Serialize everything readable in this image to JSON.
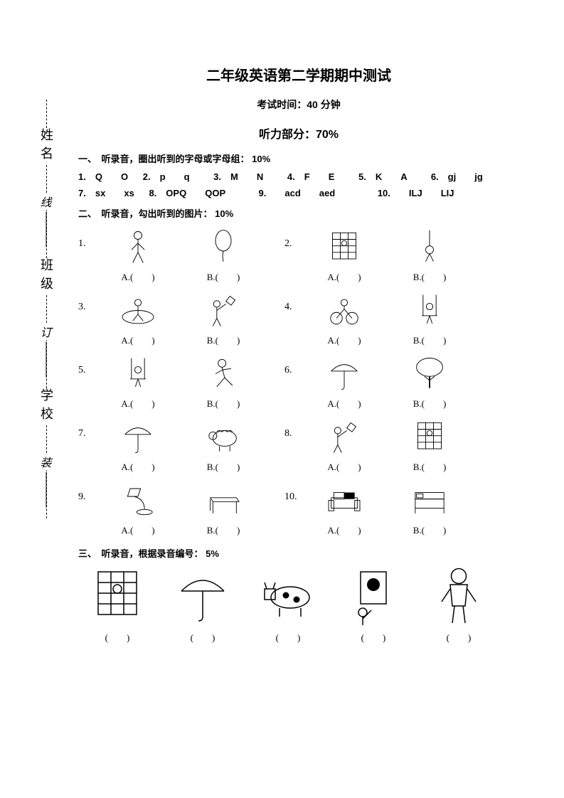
{
  "sidebar": {
    "labels": [
      "姓名",
      "班级",
      "学校"
    ],
    "binding": [
      "线",
      "订",
      "装"
    ]
  },
  "header": {
    "title": "二年级英语第二学期期中测试",
    "subtitle": "考试时间：40 分钟",
    "section": "听力部分：70%"
  },
  "section1": {
    "heading": "一、　听录音，圈出听到的字母或字母组： 10%",
    "items": [
      {
        "n": "1.",
        "a": "Q",
        "b": "O"
      },
      {
        "n": "2.",
        "a": "p",
        "b": "q"
      },
      {
        "n": "3.",
        "a": "M",
        "b": "N"
      },
      {
        "n": "4.",
        "a": "F",
        "b": "E"
      },
      {
        "n": "5.",
        "a": "K",
        "b": "A"
      },
      {
        "n": "6.",
        "a": "gj",
        "b": "jg"
      },
      {
        "n": "7.",
        "a": "sx",
        "b": "xs"
      },
      {
        "n": "8.",
        "a": "OPQ",
        "b": "QOP"
      },
      {
        "n": "9.",
        "a": "acd",
        "b": "aed"
      },
      {
        "n": "10.",
        "a": "ILJ",
        "b": "LIJ"
      }
    ]
  },
  "section2": {
    "heading": "二、　听录音，勾出听到的图片： 10%",
    "label_a": "A.(　　)",
    "label_b": "B.(　　)",
    "pairs": [
      {
        "n": "1.",
        "a": "boy-walking",
        "b": "balloon"
      },
      {
        "n": "2.",
        "a": "net-climbing",
        "b": "rope-swing"
      },
      {
        "n": "3.",
        "a": "running-track",
        "b": "kite-flying"
      },
      {
        "n": "4.",
        "a": "bicycle",
        "b": "swing"
      },
      {
        "n": "5.",
        "a": "swing",
        "b": "boy-running"
      },
      {
        "n": "6.",
        "a": "umbrella",
        "b": "tree"
      },
      {
        "n": "7.",
        "a": "umbrella",
        "b": "sheep"
      },
      {
        "n": "8.",
        "a": "kite-flying",
        "b": "net-climbing"
      },
      {
        "n": "9.",
        "a": "lamp",
        "b": "table"
      },
      {
        "n": "10.",
        "a": "sofa",
        "b": "bed"
      }
    ]
  },
  "section3": {
    "heading": "三、　听录音，根据录音编号： 5%",
    "label": "(　　)",
    "items": [
      "net-climbing",
      "umbrella",
      "cow",
      "painting",
      "boy-standing"
    ]
  },
  "colors": {
    "text": "#000000",
    "background": "#ffffff"
  }
}
